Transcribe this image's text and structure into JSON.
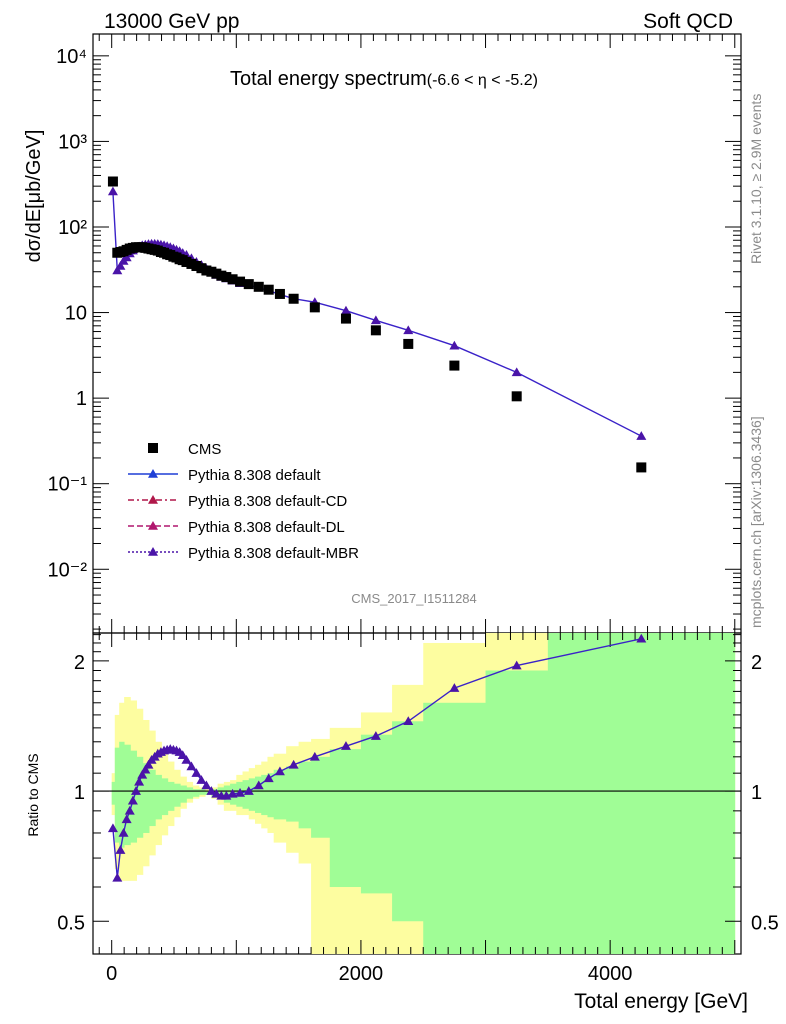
{
  "header": {
    "left": "13000 GeV pp",
    "right": "Soft QCD"
  },
  "plot_title": "Total energy spectrum",
  "plot_title_range": "(-6.6 < η < -5.2)",
  "ylabel_main": "dσ/dE[μb/GeV]",
  "ylabel_ratio": "Ratio to CMS",
  "xlabel": "Total energy [GeV]",
  "side_top": "Rivet 3.1.10, ≥ 2.9M events",
  "side_bottom": "mcplots.cern.ch [arXiv:1306.3436]",
  "analysis_id": "CMS_2017_I1511284",
  "legend": [
    {
      "label": "CMS",
      "marker": "square",
      "color": "#000000"
    },
    {
      "label": "Pythia 8.308 default",
      "marker": "triangle",
      "line": "solid",
      "color": "#1f3fd6"
    },
    {
      "label": "Pythia 8.308 default-CD",
      "marker": "triangle",
      "line": "dashdot",
      "color": "#b0174a"
    },
    {
      "label": "Pythia 8.308 default-DL",
      "marker": "triangle",
      "line": "dashed",
      "color": "#b0176e"
    },
    {
      "label": "Pythia 8.308 default-MBR",
      "marker": "triangle",
      "line": "dotted",
      "color": "#4a14a8"
    }
  ],
  "chart_data": [
    {
      "type": "scatter",
      "panel": "main",
      "title": "Total energy spectrum (-6.6 < η < -5.2)",
      "xlabel": "",
      "ylabel": "dσ/dE[μb/GeV]",
      "yscale": "log",
      "xlim": [
        -150,
        5050
      ],
      "ylim": [
        0.0018,
        18000
      ],
      "yticks": [
        "10⁻²",
        "10⁻¹",
        "1",
        "10",
        "10²",
        "10³",
        "10⁴"
      ],
      "series": [
        {
          "name": "CMS",
          "marker": "square",
          "color": "#000000",
          "x": [
            10,
            45,
            70,
            95,
            120,
            145,
            170,
            195,
            220,
            245,
            270,
            295,
            320,
            345,
            370,
            395,
            420,
            445,
            470,
            495,
            520,
            545,
            570,
            600,
            640,
            680,
            720,
            760,
            800,
            840,
            880,
            920,
            970,
            1030,
            1100,
            1180,
            1260,
            1350,
            1460,
            1630,
            1880,
            2120,
            2380,
            2750,
            3250,
            4250
          ],
          "y": [
            340,
            50,
            51,
            52,
            54,
            56,
            57,
            58,
            58,
            58,
            57,
            56,
            55,
            54,
            53,
            51,
            50,
            48,
            47,
            45,
            44,
            42,
            41,
            39,
            37,
            35,
            33,
            31,
            30,
            28.5,
            27,
            26,
            24.5,
            23,
            21.5,
            20,
            18.5,
            16.5,
            14.5,
            11.5,
            8.5,
            6.2,
            4.3,
            2.4,
            1.05,
            0.155
          ]
        },
        {
          "name": "Pythia 8.308 default",
          "marker": "triangle",
          "color": "#1f3fd6",
          "x": [
            10,
            45,
            70,
            95,
            120,
            145,
            170,
            195,
            220,
            245,
            270,
            295,
            320,
            345,
            370,
            395,
            420,
            445,
            470,
            495,
            520,
            545,
            570,
            600,
            640,
            680,
            720,
            760,
            800,
            840,
            880,
            920,
            970,
            1030,
            1100,
            1180,
            1260,
            1350,
            1460,
            1630,
            1880,
            2120,
            2380,
            2750,
            3250,
            4250
          ],
          "y": [
            260,
            31,
            35,
            40,
            44,
            49,
            53,
            56,
            59,
            61,
            62,
            63,
            63.5,
            63.5,
            63,
            62,
            61,
            59.5,
            58,
            56,
            54,
            52,
            49.5,
            47,
            43,
            39,
            36,
            32.5,
            29.5,
            27.5,
            26,
            25,
            23.5,
            22,
            21,
            19.5,
            18,
            16.3,
            14.5,
            13.2,
            10.5,
            8.1,
            6.2,
            4.1,
            2.0,
            0.36
          ]
        }
      ]
    },
    {
      "type": "line",
      "panel": "ratio",
      "xlabel": "Total energy [GeV]",
      "ylabel": "Ratio to CMS",
      "yscale": "log",
      "xlim": [
        -150,
        5050
      ],
      "ylim": [
        0.42,
        2.32
      ],
      "yticks": [
        "0.5",
        "1",
        "2"
      ],
      "xticks": [
        "0",
        "2000",
        "4000"
      ],
      "reference_line": 1.0,
      "uncertainty_bands": {
        "edges": [
          0,
          25,
          60,
          100,
          150,
          200,
          250,
          300,
          350,
          400,
          450,
          500,
          550,
          600,
          650,
          700,
          750,
          800,
          850,
          900,
          950,
          1000,
          1050,
          1100,
          1150,
          1200,
          1250,
          1300,
          1400,
          1500,
          1600,
          1750,
          2000,
          2250,
          2500,
          3000,
          3500,
          5000
        ],
        "yellow_lo": [
          0.88,
          0.66,
          0.62,
          0.62,
          0.62,
          0.64,
          0.67,
          0.71,
          0.75,
          0.79,
          0.83,
          0.87,
          0.91,
          0.94,
          0.96,
          0.97,
          0.98,
          0.96,
          0.93,
          0.9,
          0.9,
          0.88,
          0.88,
          0.86,
          0.84,
          0.82,
          0.8,
          0.76,
          0.72,
          0.68,
          0.42,
          0.42,
          0.42,
          0.42,
          0.42,
          0.42,
          0.42
        ],
        "yellow_hi": [
          1.1,
          1.5,
          1.6,
          1.65,
          1.62,
          1.55,
          1.46,
          1.38,
          1.3,
          1.22,
          1.17,
          1.12,
          1.08,
          1.05,
          1.03,
          1.02,
          1.01,
          1.02,
          1.04,
          1.05,
          1.06,
          1.09,
          1.11,
          1.13,
          1.15,
          1.17,
          1.2,
          1.22,
          1.27,
          1.3,
          1.32,
          1.4,
          1.52,
          1.76,
          2.2,
          2.32,
          2.32
        ],
        "green_lo": [
          0.93,
          0.76,
          0.74,
          0.75,
          0.76,
          0.78,
          0.8,
          0.83,
          0.86,
          0.88,
          0.9,
          0.92,
          0.94,
          0.96,
          0.97,
          0.98,
          0.98,
          0.97,
          0.96,
          0.94,
          0.93,
          0.92,
          0.91,
          0.9,
          0.89,
          0.88,
          0.87,
          0.86,
          0.85,
          0.82,
          0.78,
          0.6,
          0.58,
          0.5,
          0.42,
          0.42,
          0.42
        ],
        "green_hi": [
          1.05,
          1.26,
          1.3,
          1.28,
          1.24,
          1.2,
          1.16,
          1.12,
          1.09,
          1.07,
          1.05,
          1.04,
          1.03,
          1.02,
          1.01,
          1.01,
          1.0,
          1.01,
          1.02,
          1.03,
          1.04,
          1.05,
          1.06,
          1.07,
          1.08,
          1.09,
          1.1,
          1.12,
          1.14,
          1.17,
          1.2,
          1.25,
          1.35,
          1.45,
          1.6,
          1.9,
          2.32
        ]
      },
      "series": [
        {
          "name": "Pythia 8.308 default",
          "color": "#1f3fd6",
          "x": [
            10,
            45,
            70,
            95,
            120,
            145,
            170,
            195,
            220,
            245,
            270,
            295,
            320,
            345,
            370,
            395,
            420,
            445,
            470,
            495,
            520,
            545,
            570,
            600,
            640,
            680,
            720,
            760,
            800,
            840,
            880,
            920,
            970,
            1030,
            1100,
            1180,
            1260,
            1350,
            1460,
            1630,
            1880,
            2120,
            2380,
            2750,
            3250,
            4250
          ],
          "y": [
            0.82,
            0.63,
            0.73,
            0.8,
            0.86,
            0.9,
            0.95,
            1.0,
            1.05,
            1.09,
            1.12,
            1.15,
            1.18,
            1.2,
            1.22,
            1.23,
            1.24,
            1.245,
            1.25,
            1.245,
            1.24,
            1.23,
            1.21,
            1.18,
            1.14,
            1.1,
            1.06,
            1.03,
            1.0,
            0.985,
            0.975,
            0.975,
            0.985,
            0.99,
            1.0,
            1.03,
            1.07,
            1.11,
            1.15,
            1.2,
            1.27,
            1.34,
            1.45,
            1.73,
            1.95,
            2.25
          ]
        }
      ]
    }
  ]
}
